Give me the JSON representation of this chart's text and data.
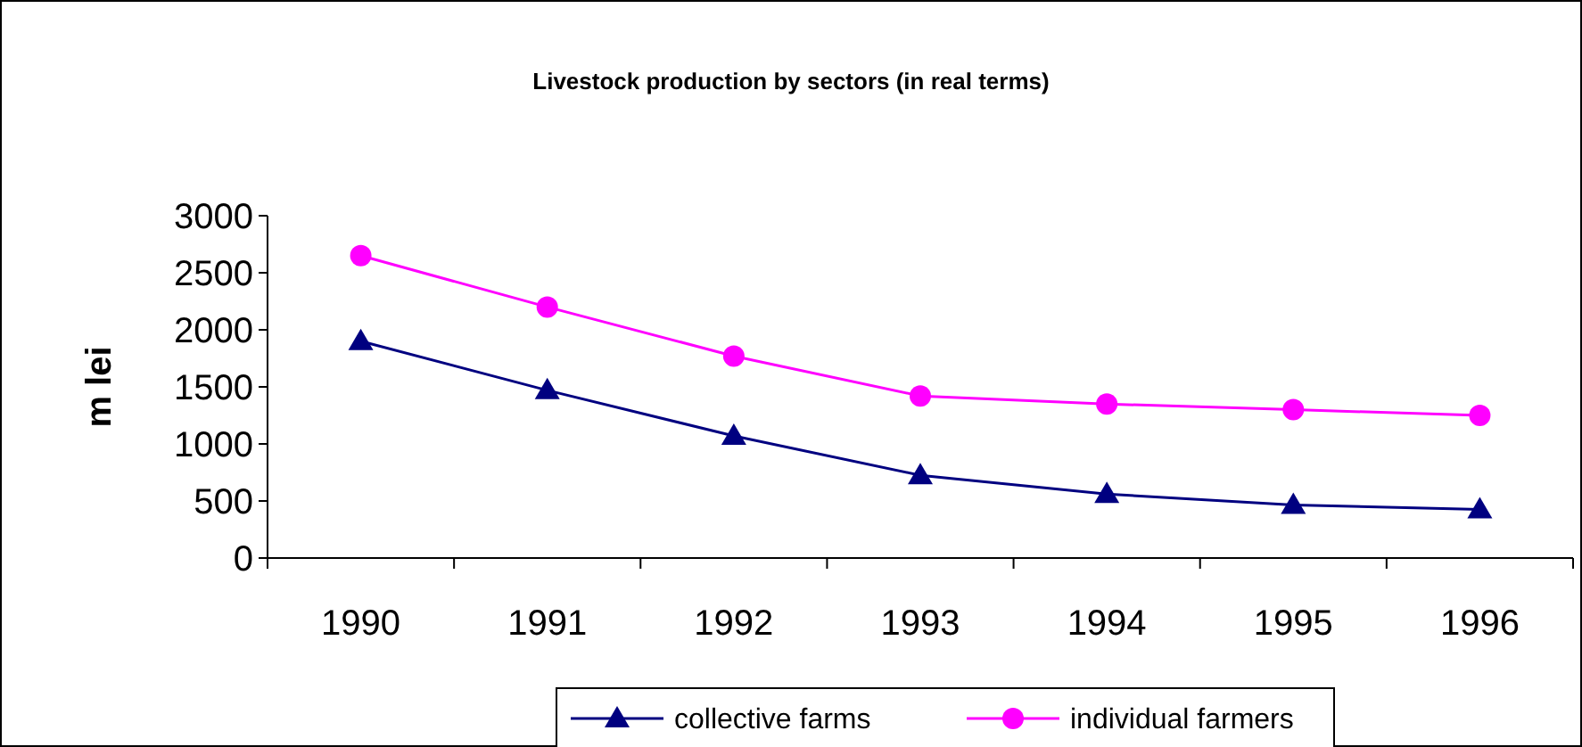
{
  "chart_data": {
    "type": "line",
    "title": "Livestock production by sectors (in real terms)",
    "ylabel": "m lei",
    "categories": [
      "1990",
      "1991",
      "1992",
      "1993",
      "1994",
      "1995",
      "1996"
    ],
    "series": [
      {
        "name": "collective farms",
        "color": "#000080",
        "marker": "triangle",
        "values": [
          1900,
          1470,
          1070,
          725,
          560,
          465,
          425
        ]
      },
      {
        "name": "individual farmers",
        "color": "#ff00ff",
        "marker": "circle",
        "values": [
          2650,
          2200,
          1770,
          1420,
          1350,
          1300,
          1250
        ]
      }
    ],
    "ylim": [
      0,
      3000
    ],
    "yticks": [
      0,
      500,
      1000,
      1500,
      2000,
      2500,
      3000
    ],
    "grid": false,
    "legend": "bottom",
    "line_style": "solid"
  }
}
